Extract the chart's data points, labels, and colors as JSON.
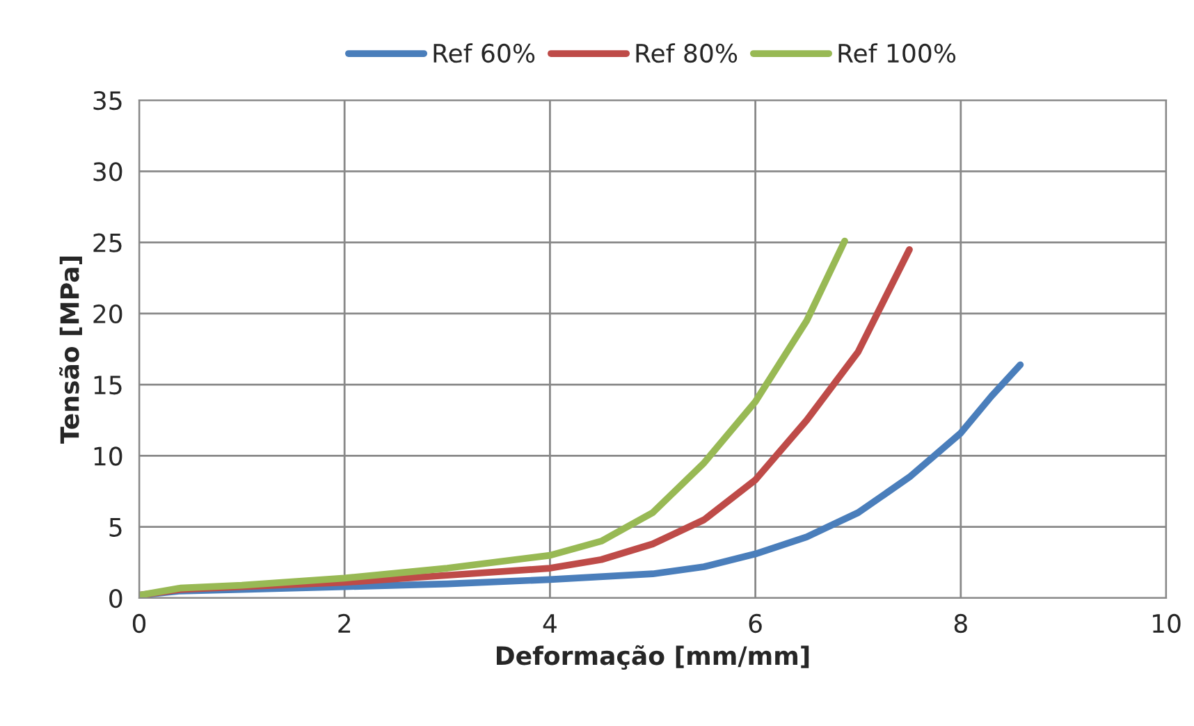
{
  "chart_data": {
    "type": "line",
    "xlabel": "Deformação [mm/mm]",
    "ylabel": "Tensão [MPa]",
    "xlim": [
      0,
      10
    ],
    "xticks": [
      0,
      2,
      4,
      6,
      8,
      10
    ],
    "ylim": [
      0,
      35
    ],
    "yticks": [
      0,
      5,
      10,
      15,
      20,
      25,
      30,
      35
    ],
    "grid": true,
    "legend": "top",
    "marker": "none",
    "line_style": "solid",
    "series": [
      {
        "name": "Ref 60%",
        "color": "#4a7ebb",
        "x": [
          0,
          0.4,
          1,
          2,
          3,
          4,
          5,
          5.5,
          6,
          6.5,
          7,
          7.5,
          8,
          8.3,
          8.58
        ],
        "values": [
          0.2,
          0.5,
          0.6,
          0.8,
          1.0,
          1.3,
          1.7,
          2.2,
          3.1,
          4.3,
          6.0,
          8.5,
          11.6,
          14.2,
          16.4
        ]
      },
      {
        "name": "Ref 80%",
        "color": "#be4b48",
        "x": [
          0,
          0.4,
          1,
          2,
          3,
          4,
          4.5,
          5,
          5.5,
          6,
          6.5,
          7,
          7.5
        ],
        "values": [
          0.2,
          0.6,
          0.8,
          1.1,
          1.6,
          2.1,
          2.7,
          3.8,
          5.5,
          8.3,
          12.5,
          17.3,
          24.5
        ]
      },
      {
        "name": "Ref 100%",
        "color": "#98b954",
        "x": [
          0,
          0.4,
          1,
          2,
          3,
          4,
          4.5,
          5,
          5.5,
          6,
          6.5,
          6.87
        ],
        "values": [
          0.2,
          0.7,
          0.9,
          1.4,
          2.1,
          3.0,
          4.0,
          6.0,
          9.5,
          13.8,
          19.5,
          25.1
        ]
      }
    ]
  }
}
